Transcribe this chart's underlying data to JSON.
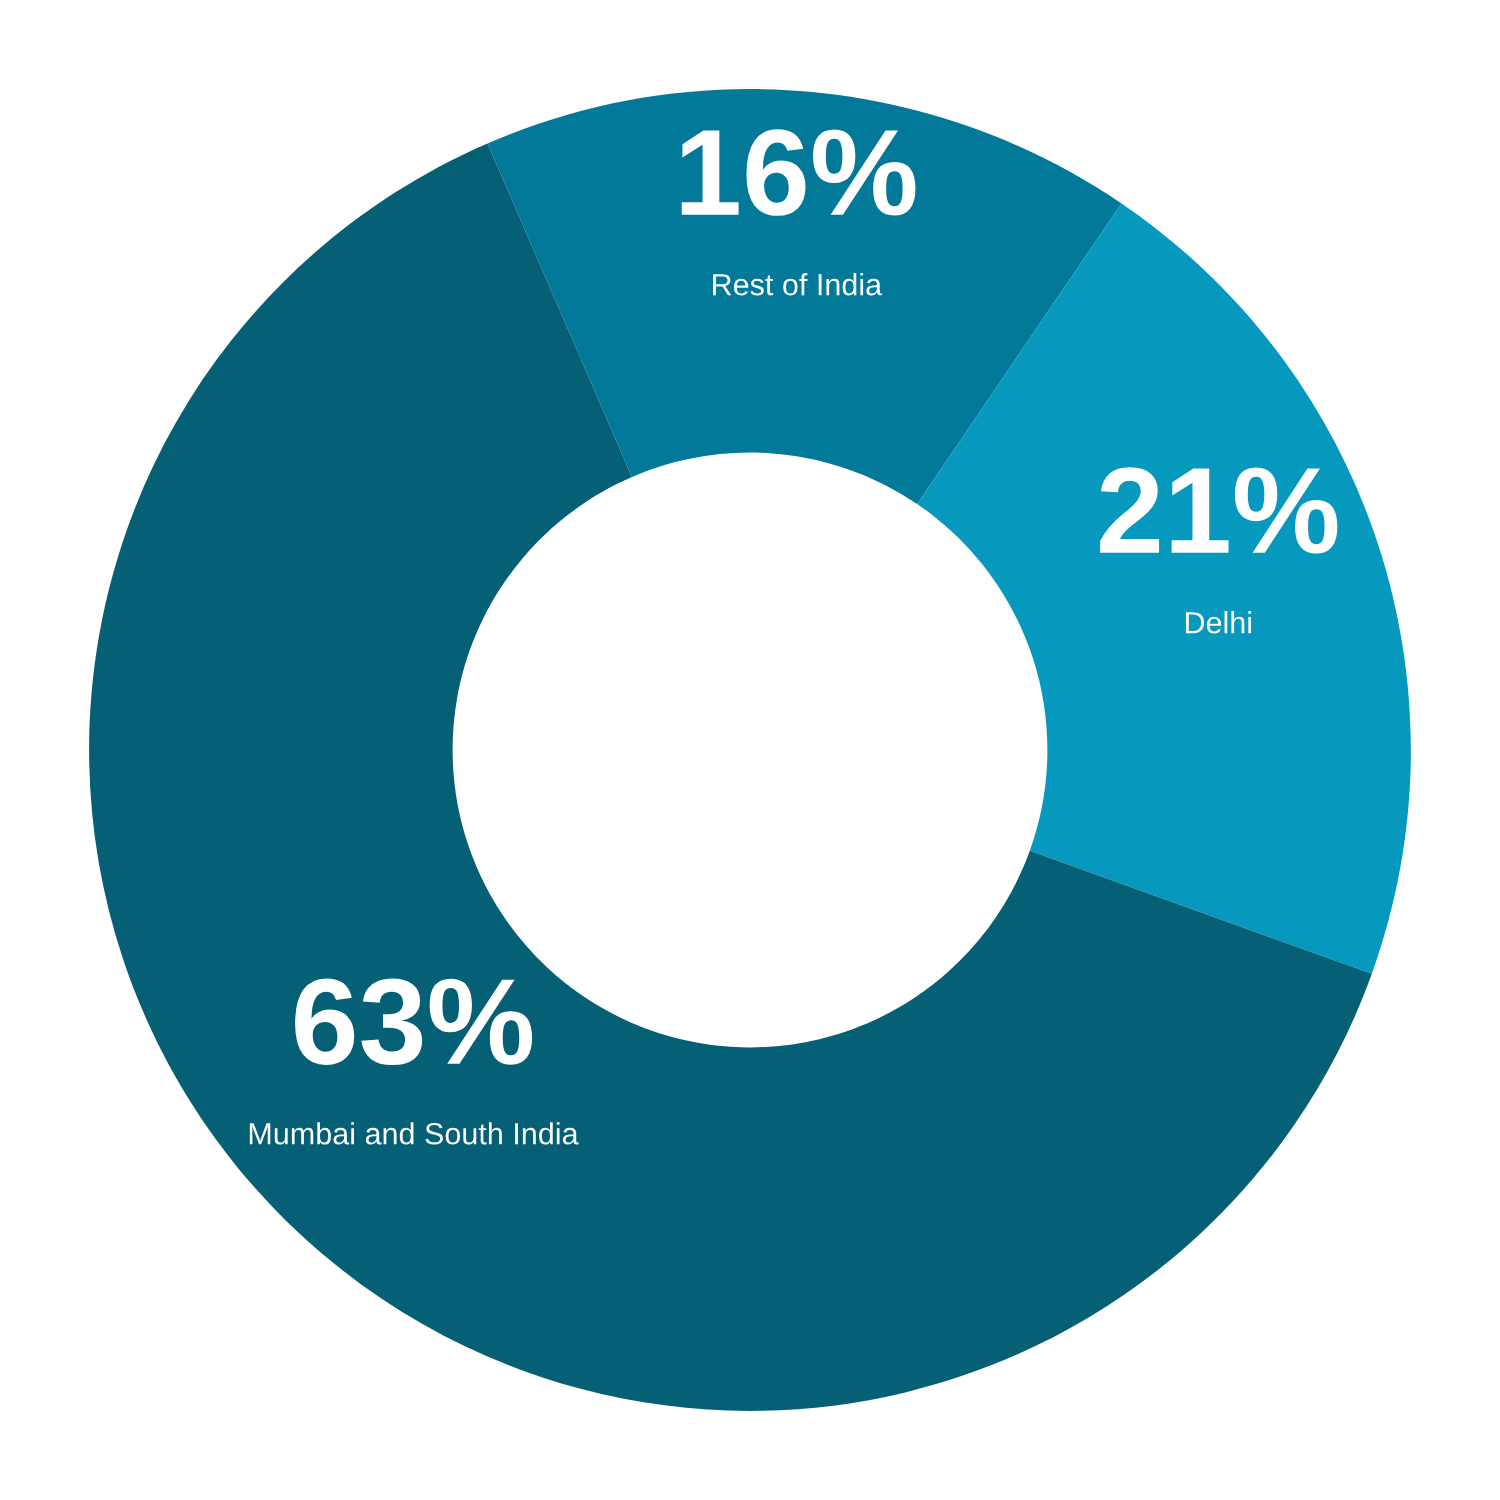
{
  "chart_data": {
    "type": "donut",
    "categories": [
      "Rest of India",
      "Delhi",
      "Mumbai and South India"
    ],
    "values": [
      16,
      21,
      63
    ],
    "value_labels": [
      "16%",
      "21%",
      "63%"
    ],
    "colors": [
      "#03799a",
      "#0799bd",
      "#055f75"
    ]
  }
}
